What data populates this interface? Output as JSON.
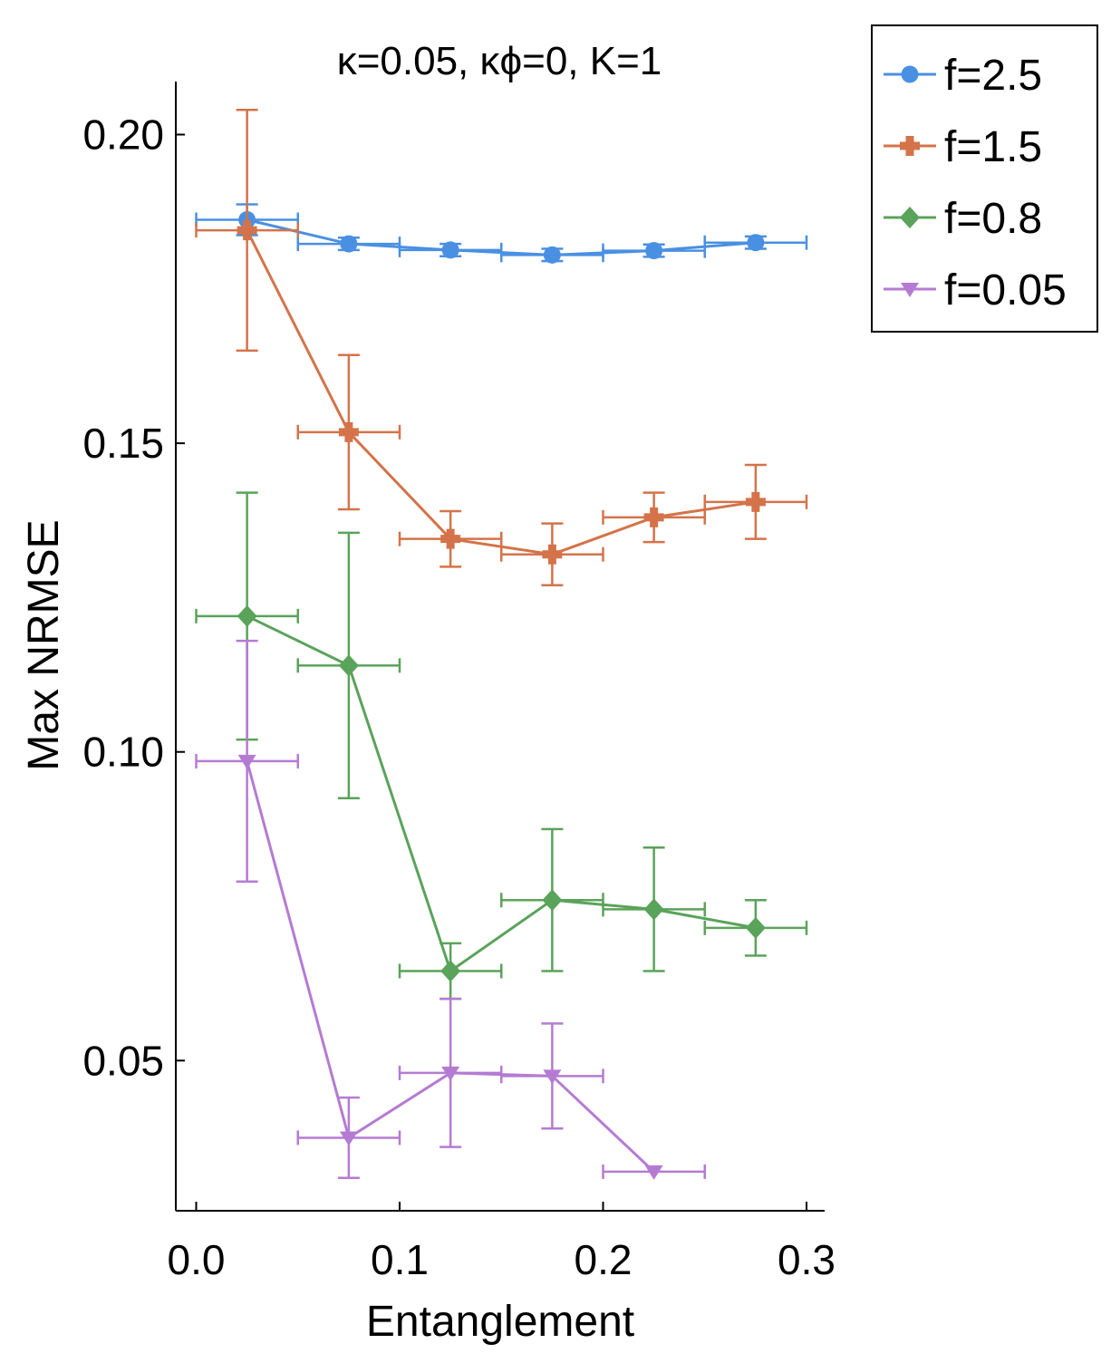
{
  "chart_data": {
    "type": "line",
    "title": "κ=0.05, κϕ=0, K=1",
    "xlabel": "Entanglement",
    "ylabel": "Max NRMSE",
    "xlim": [
      -0.01,
      0.31
    ],
    "ylim": [
      0.027,
      0.209
    ],
    "xticks": [
      0.0,
      0.1,
      0.2,
      0.3
    ],
    "xtick_labels": [
      "0.0",
      "0.1",
      "0.2",
      "0.3"
    ],
    "yticks": [
      0.05,
      0.1,
      0.15,
      0.2
    ],
    "ytick_labels": [
      "0.05",
      "0.10",
      "0.15",
      "0.20"
    ],
    "grid": false,
    "legend_position": "outside top-right",
    "x_error_halfwidth": 0.025,
    "series": [
      {
        "name": "f=2.5",
        "color": "#4a90e2",
        "marker": "circle",
        "x": [
          0.025,
          0.075,
          0.125,
          0.175,
          0.225,
          0.275
        ],
        "y": [
          0.1862,
          0.1823,
          0.1813,
          0.1805,
          0.1812,
          0.1825
        ],
        "y_err": [
          0.0025,
          0.001,
          0.001,
          0.001,
          0.001,
          0.001
        ]
      },
      {
        "name": "f=1.5",
        "color": "#d4734a",
        "marker": "plus",
        "x": [
          0.025,
          0.075,
          0.125,
          0.175,
          0.225,
          0.275
        ],
        "y": [
          0.1845,
          0.1518,
          0.1345,
          0.132,
          0.138,
          0.1405
        ],
        "y_err": [
          0.0195,
          0.0125,
          0.0045,
          0.005,
          0.004,
          0.006
        ]
      },
      {
        "name": "f=0.8",
        "color": "#5aa35a",
        "marker": "diamond",
        "x": [
          0.025,
          0.075,
          0.125,
          0.175,
          0.225,
          0.275
        ],
        "y": [
          0.122,
          0.114,
          0.0645,
          0.076,
          0.0745,
          0.0715
        ],
        "y_err": [
          0.02,
          0.0215,
          0.0045,
          0.0115,
          0.01,
          0.0045
        ]
      },
      {
        "name": "f=0.05",
        "color": "#b57bd3",
        "marker": "triangle-down",
        "x": [
          0.025,
          0.075,
          0.125,
          0.175,
          0.225
        ],
        "y": [
          0.0985,
          0.0375,
          0.048,
          0.0475,
          0.032
        ],
        "y_err": [
          0.0195,
          0.0065,
          0.012,
          0.0085,
          0.0
        ]
      }
    ]
  }
}
